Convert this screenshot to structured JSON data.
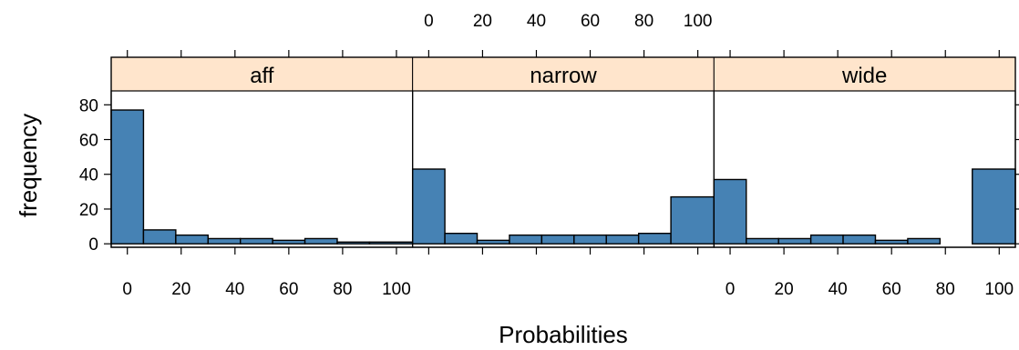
{
  "chart_data": {
    "type": "bar",
    "xlabel": "Probabilities",
    "ylabel": "frequency",
    "xlim": [
      -6,
      106
    ],
    "ylim": [
      -2,
      88
    ],
    "x_ticks": [
      "0",
      "20",
      "40",
      "60",
      "80",
      "100"
    ],
    "y_ticks": [
      "0",
      "20",
      "40",
      "60",
      "80"
    ],
    "bar_color": "#4682b4",
    "strip_color": "#ffe5cc",
    "bin_edges": [
      -6,
      6,
      18,
      30,
      42,
      54,
      66,
      78,
      90,
      106
    ],
    "panels": [
      {
        "name": "aff",
        "values": [
          77,
          8,
          5,
          3,
          3,
          2,
          3,
          1,
          1
        ]
      },
      {
        "name": "narrow",
        "values": [
          43,
          6,
          2,
          5,
          5,
          5,
          5,
          6,
          27
        ]
      },
      {
        "name": "wide",
        "values": [
          37,
          3,
          3,
          5,
          5,
          2,
          3,
          0,
          43
        ]
      }
    ]
  }
}
